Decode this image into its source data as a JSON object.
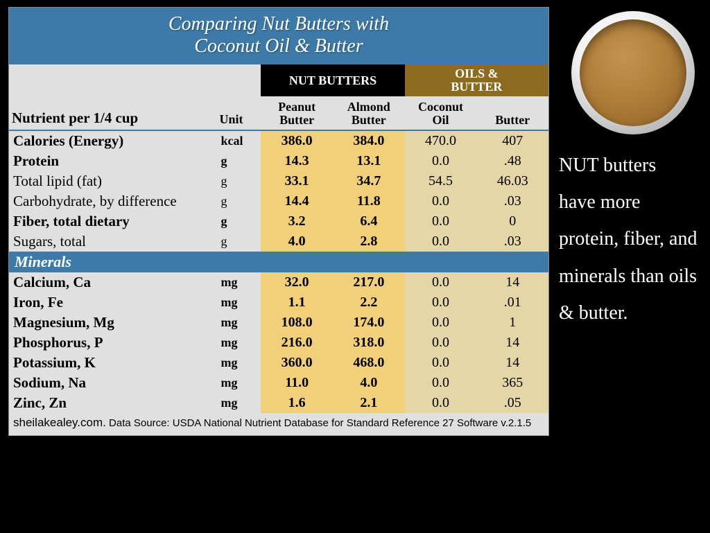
{
  "title_l1": "Comparing  Nut Butters with",
  "title_l2": "Coconut Oil & Butter",
  "header": {
    "nutrient": "Nutrient per 1/4 cup",
    "unit": "Unit",
    "group_nb": "NUT BUTTERS",
    "group_ob_l1": "OILS &",
    "group_ob_l2": "BUTTER",
    "peanut_l1": "Peanut",
    "peanut_l2": "Butter",
    "almond_l1": "Almond",
    "almond_l2": "Butter",
    "coconut_l1": "Coconut",
    "coconut_l2": "Oil",
    "butter": "Butter"
  },
  "section_minerals": "Minerals",
  "rows_energy": [
    {
      "name": "Calories (Energy)",
      "unit": "kcal",
      "pb": "386.0",
      "ab": "384.0",
      "co": "470.0",
      "bu": "407",
      "bold": true
    },
    {
      "name": "Protein",
      "unit": "g",
      "pb": "14.3",
      "ab": "13.1",
      "co": "0.0",
      "bu": ".48",
      "bold": true
    },
    {
      "name": "Total lipid (fat)",
      "unit": "g",
      "pb": "33.1",
      "ab": "34.7",
      "co": "54.5",
      "bu": "46.03",
      "bold": false
    },
    {
      "name": "Carbohydrate, by difference",
      "unit": "g",
      "pb": "14.4",
      "ab": "11.8",
      "co": "0.0",
      "bu": ".03",
      "bold": false
    },
    {
      "name": "Fiber, total dietary",
      "unit": "g",
      "pb": "3.2",
      "ab": "6.4",
      "co": "0.0",
      "bu": "0",
      "bold": true
    },
    {
      "name": "Sugars, total",
      "unit": "g",
      "pb": "4.0",
      "ab": "2.8",
      "co": "0.0",
      "bu": ".03",
      "bold": false
    }
  ],
  "rows_minerals": [
    {
      "name": "Calcium, Ca",
      "unit": "mg",
      "pb": "32.0",
      "ab": "217.0",
      "co": "0.0",
      "bu": "14",
      "bold": true
    },
    {
      "name": "Iron, Fe",
      "unit": "mg",
      "pb": "1.1",
      "ab": "2.2",
      "co": "0.0",
      "bu": ".01",
      "bold": true
    },
    {
      "name": "Magnesium, Mg",
      "unit": "mg",
      "pb": "108.0",
      "ab": "174.0",
      "co": "0.0",
      "bu": "1",
      "bold": true
    },
    {
      "name": "Phosphorus, P",
      "unit": "mg",
      "pb": "216.0",
      "ab": "318.0",
      "co": "0.0",
      "bu": "14",
      "bold": true
    },
    {
      "name": "Potassium, K",
      "unit": "mg",
      "pb": "360.0",
      "ab": "468.0",
      "co": "0.0",
      "bu": "14",
      "bold": true
    },
    {
      "name": "Sodium, Na",
      "unit": "mg",
      "pb": "11.0",
      "ab": "4.0",
      "co": "0.0",
      "bu": "365",
      "bold": true
    },
    {
      "name": "Zinc, Zn",
      "unit": "mg",
      "pb": "1.6",
      "ab": "2.1",
      "co": "0.0",
      "bu": ".05",
      "bold": true
    }
  ],
  "footer_site": "sheilakealey.com.",
  "footer_rest": " Data Source: USDA National Nutrient Database for Standard Reference 27 Software v.2.1.5",
  "side_text": "NUT butters have more protein, fiber, and minerals than oils & butter.",
  "colors": {
    "blue": "#3d7aa8",
    "black": "#000000",
    "olive": "#8a6b1f",
    "nb_col": "#f2cf7a",
    "ob_col": "#e4d6a6",
    "panel": "#e0e0e0"
  }
}
